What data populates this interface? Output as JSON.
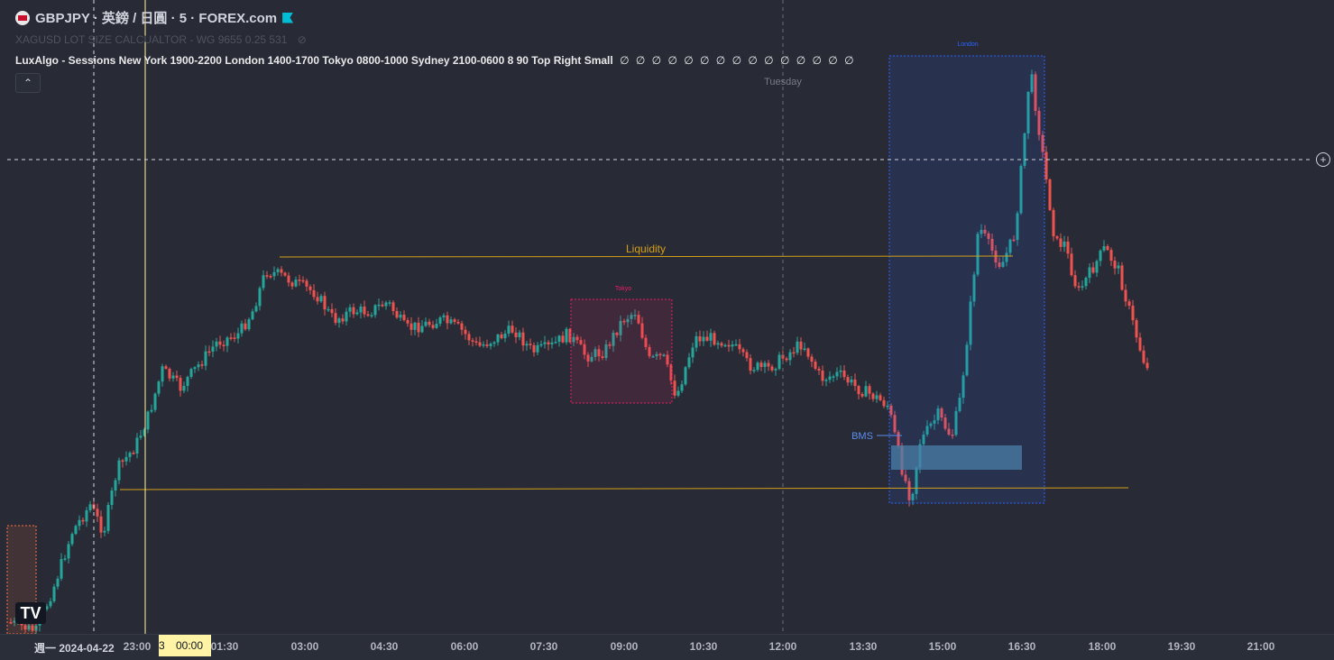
{
  "symbol_title": "GBPJPY · 英鎊 / 日圓 · 5 · FOREX.com",
  "indicator_1": "XAGUSD LOT SIZE CALCUALTOR - WG 9655 0.25 531",
  "indicator_2": "LuxAlgo - Sessions New York 1900-2200 London 1400-1700 Tokyo 0800-1000 Sydney 2100-0600 8 90 Top Right Small",
  "indicator_2_values": "∅ ∅ ∅ ∅ ∅ ∅ ∅ ∅ ∅ ∅ ∅ ∅ ∅ ∅ ∅",
  "collapse_icon": "chevron-up-icon",
  "tv_logo": "TV",
  "plus_icon": "+",
  "annotations": {
    "liquidity": "Liquidity",
    "bms": "BMS",
    "tokyo": "Tokyo",
    "london": "London",
    "day_marker": "Tuesday"
  },
  "colors": {
    "background": "#282b36",
    "up_candle": "#26a69a",
    "down_candle": "#ef5350",
    "liquidity": "#d4a017",
    "tokyo_box": "#e91e63",
    "london_box": "#2962ff",
    "bms_box": "#4a7fa8",
    "cursor_line": "#fff59d"
  },
  "time_axis": {
    "date_label": "週一 2024-04-22",
    "ticks": [
      "23:00",
      "01:30",
      "03:00",
      "04:30",
      "06:00",
      "07:30",
      "09:00",
      "10:30",
      "12:00",
      "13:30",
      "15:00",
      "16:30",
      "18:00",
      "19:30",
      "21:00"
    ],
    "cursor_time": "00:00",
    "cursor_prefix": "3"
  }
}
